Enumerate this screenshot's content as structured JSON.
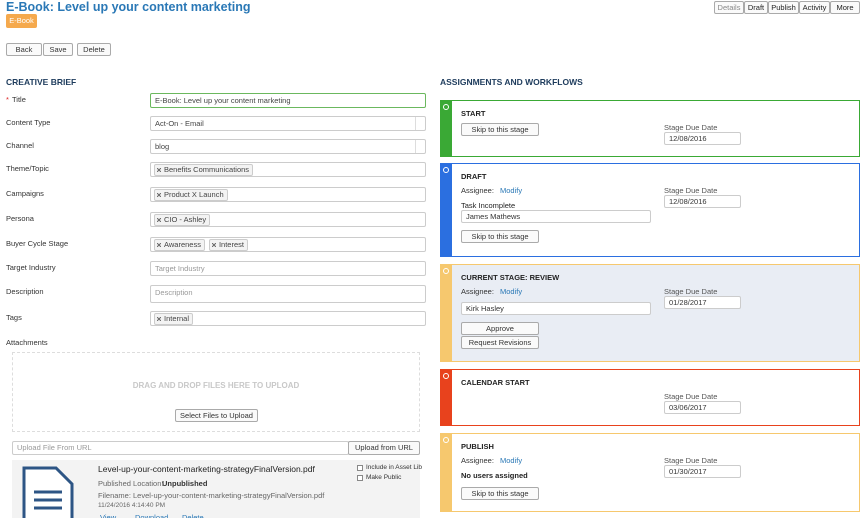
{
  "header": {
    "title": "E-Book: Level up your content marketing",
    "badge": "E-Book",
    "buttons": [
      "Back",
      "Save",
      "Delete"
    ],
    "tabs": [
      "Details",
      "Draft",
      "Publish",
      "Activity",
      "More"
    ]
  },
  "brief": {
    "heading": "CREATIVE BRIEF",
    "required_mark": "*",
    "fields": [
      {
        "label": "Title",
        "value": "E-Book: Level up your content marketing",
        "required": true
      },
      {
        "label": "Content Type",
        "value": "Act-On - Email",
        "select": true
      },
      {
        "label": "Channel",
        "value": "blog",
        "select": true
      },
      {
        "label": "Theme/Topic",
        "tags": [
          "Benefits Communications"
        ]
      },
      {
        "label": "Campaigns",
        "tags": [
          "Product X Launch"
        ]
      },
      {
        "label": "Persona",
        "tags": [
          "CIO - Ashley"
        ]
      },
      {
        "label": "Buyer Cycle Stage",
        "tags": [
          "Awareness",
          "Interest"
        ]
      },
      {
        "label": "Target Industry",
        "placeholder": "Target Industry"
      },
      {
        "label": "Description",
        "placeholder": "Description",
        "textarea": true
      },
      {
        "label": "Tags",
        "tags": [
          "Internal"
        ]
      }
    ],
    "attachments": {
      "label": "Attachments",
      "dropzone": "DRAG AND DROP FILES HERE TO UPLOAD",
      "select_button": "Select Files to Upload",
      "url_placeholder": "Upload File From URL",
      "url_button": "Upload from URL",
      "file": {
        "name": "Level-up-your-content-marketing-strategyFinalVersion.pdf",
        "location_label": "Published Location:",
        "location": "Unpublished",
        "filename_line": "Filename: Level-up-your-content-marketing-strategyFinalVersion.pdf",
        "date": "11/24/2016 4:14:40 PM",
        "links": [
          "View",
          "Download",
          "Delete"
        ],
        "options": [
          "Include in Asset Lib",
          "Make Public"
        ]
      }
    }
  },
  "workflow": {
    "heading": "ASSIGNMENTS AND WORKFLOWS",
    "stages": [
      {
        "title": "START",
        "color": "#3aa935",
        "buttons": [
          "Skip to this stage"
        ],
        "due_label": "Stage Due Date",
        "due_date": "12/08/2016"
      },
      {
        "title": "DRAFT",
        "color": "#2b6fe0",
        "assignee_label": "Assignee:",
        "modify": "Modify",
        "status": "Task Incomplete",
        "person": "James Mathews",
        "buttons": [
          "Skip to this stage"
        ],
        "due_label": "Stage Due Date",
        "due_date": "12/08/2016"
      },
      {
        "title": "CURRENT STAGE:  REVIEW",
        "color": "#f6c86e",
        "background": "#e9edf4",
        "assignee_label": "Assignee:",
        "modify": "Modify",
        "person": "Kirk Hasley",
        "buttons": [
          "Approve",
          "Request Revisions"
        ],
        "due_label": "Stage Due Date",
        "due_date": "01/28/2017"
      },
      {
        "title": "CALENDAR START",
        "color": "#e8421d",
        "due_label": "Stage Due Date",
        "due_date": "03/06/2017"
      },
      {
        "title": "PUBLISH",
        "color": "#f6c86e",
        "assignee_label": "Assignee:",
        "modify": "Modify",
        "status": "No users assigned",
        "buttons": [
          "Skip to this stage"
        ],
        "due_label": "Stage Due Date",
        "due_date": "01/30/2017"
      }
    ]
  }
}
